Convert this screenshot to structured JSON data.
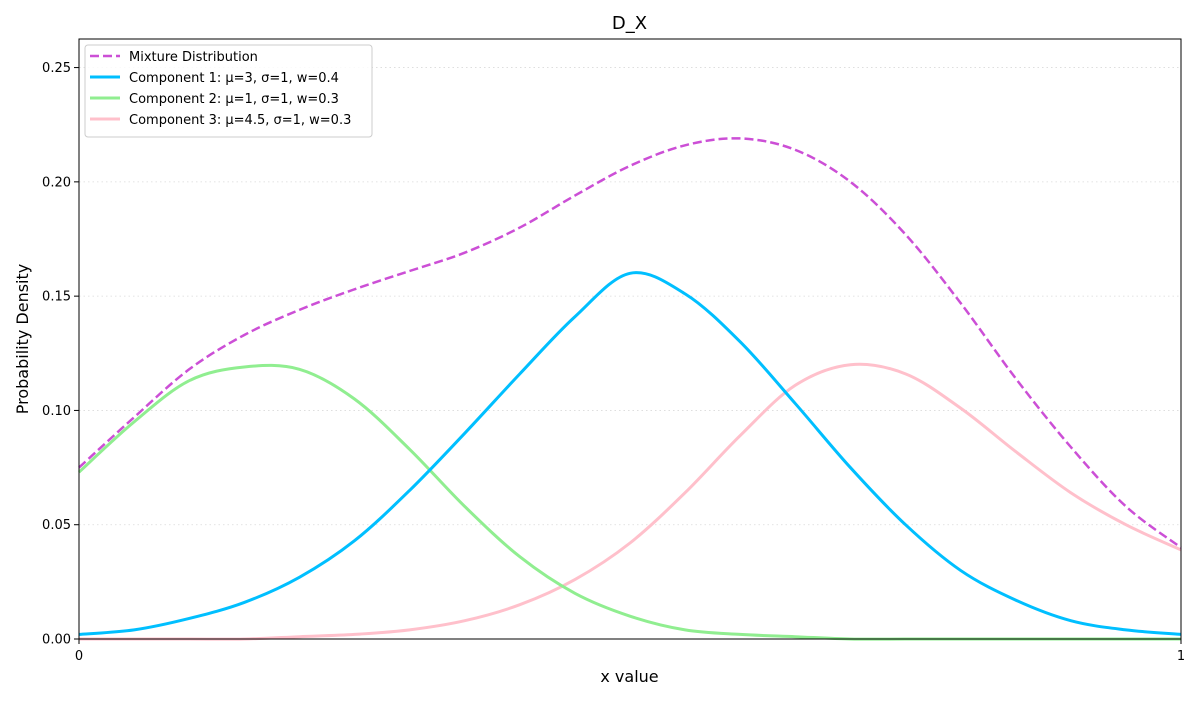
{
  "chart_data": {
    "type": "line",
    "title": "D_X",
    "xlabel": "x value",
    "ylabel": "Probability Density",
    "xlim": [
      0,
      1
    ],
    "ylim": [
      0,
      0.2625
    ],
    "x_ticks": [
      {
        "value": 0,
        "label": "0"
      },
      {
        "value": 1,
        "label": "1"
      }
    ],
    "y_ticks": [
      {
        "value": 0.0,
        "label": "0.00"
      },
      {
        "value": 0.05,
        "label": "0.05"
      },
      {
        "value": 0.1,
        "label": "0.10"
      },
      {
        "value": 0.15,
        "label": "0.15"
      },
      {
        "value": 0.2,
        "label": "0.20"
      },
      {
        "value": 0.25,
        "label": "0.25"
      }
    ],
    "grid": {
      "y": true,
      "x": false,
      "style": "dotted"
    },
    "legend": {
      "position": "top-left"
    },
    "series": [
      {
        "name": "Mixture Distribution",
        "color": "#cc4fd6",
        "dash": true,
        "x": [
          0,
          0.05,
          0.1,
          0.15,
          0.2,
          0.25,
          0.3,
          0.35,
          0.4,
          0.45,
          0.5,
          0.55,
          0.6,
          0.65,
          0.7,
          0.75,
          0.8,
          0.85,
          0.9,
          0.95,
          1
        ],
        "y": [
          0.075,
          0.097,
          0.118,
          0.133,
          0.144,
          0.153,
          0.161,
          0.169,
          0.18,
          0.194,
          0.207,
          0.216,
          0.219,
          0.214,
          0.2,
          0.177,
          0.147,
          0.114,
          0.084,
          0.058,
          0.04
        ]
      },
      {
        "name": "Component 1: μ=3, σ=1, w=0.4",
        "color": "#00bfff",
        "dash": false,
        "x": [
          0,
          0.05,
          0.1,
          0.15,
          0.2,
          0.25,
          0.3,
          0.35,
          0.4,
          0.45,
          0.5,
          0.55,
          0.6,
          0.65,
          0.7,
          0.75,
          0.8,
          0.85,
          0.9,
          0.95,
          1
        ],
        "y": [
          0.002,
          0.004,
          0.009,
          0.016,
          0.027,
          0.043,
          0.065,
          0.09,
          0.116,
          0.141,
          0.16,
          0.151,
          0.13,
          0.103,
          0.075,
          0.05,
          0.03,
          0.017,
          0.008,
          0.004,
          0.002
        ]
      },
      {
        "name": "Component 2: μ=1, σ=1, w=0.3",
        "color": "#90ee90",
        "dash": false,
        "x": [
          0,
          0.05,
          0.1,
          0.15,
          0.2,
          0.25,
          0.3,
          0.35,
          0.4,
          0.45,
          0.5,
          0.55,
          0.6,
          0.65,
          0.7,
          0.75,
          0.8,
          0.85,
          0.9,
          0.95,
          1
        ],
        "y": [
          0.073,
          0.095,
          0.113,
          0.119,
          0.118,
          0.105,
          0.083,
          0.058,
          0.036,
          0.02,
          0.01,
          0.004,
          0.002,
          0.001,
          0.0,
          0.0,
          0.0,
          0.0,
          0.0,
          0.0,
          0.0
        ]
      },
      {
        "name": "Component 3: μ=4.5, σ=1, w=0.3",
        "color": "#ffc0cb",
        "dash": false,
        "x": [
          0,
          0.05,
          0.1,
          0.15,
          0.2,
          0.25,
          0.3,
          0.35,
          0.4,
          0.45,
          0.5,
          0.55,
          0.6,
          0.65,
          0.7,
          0.75,
          0.8,
          0.85,
          0.9,
          0.95,
          1
        ],
        "y": [
          0.0,
          0.0,
          0.0,
          0.0,
          0.001,
          0.002,
          0.004,
          0.008,
          0.015,
          0.026,
          0.042,
          0.064,
          0.089,
          0.111,
          0.12,
          0.116,
          0.101,
          0.082,
          0.064,
          0.05,
          0.039
        ]
      }
    ]
  }
}
